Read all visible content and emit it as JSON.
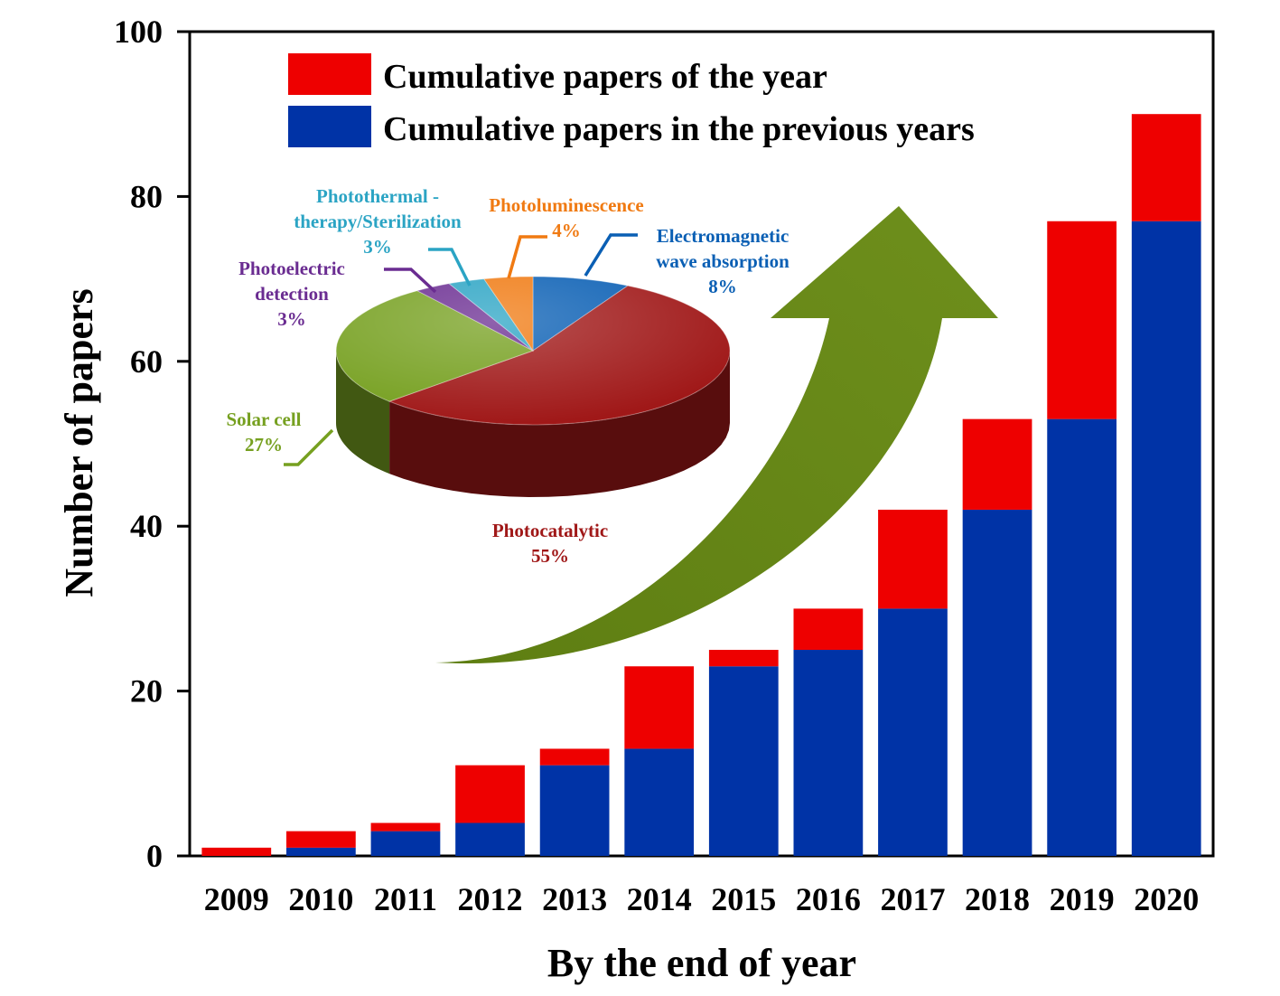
{
  "chart_data": [
    {
      "type": "bar",
      "stacked": true,
      "xlabel": "By the end of year",
      "ylabel": "Number of papers",
      "ylim": [
        0,
        100
      ],
      "yticks": [
        0,
        20,
        40,
        60,
        80,
        100
      ],
      "categories": [
        "2009",
        "2010",
        "2011",
        "2012",
        "2013",
        "2014",
        "2015",
        "2016",
        "2017",
        "2018",
        "2019",
        "2020"
      ],
      "series": [
        {
          "name": "Cumulative papers in the previous years",
          "color": "#0033A6",
          "values": [
            0,
            1,
            3,
            4,
            11,
            13,
            23,
            25,
            30,
            42,
            53,
            77
          ]
        },
        {
          "name": "Cumulative papers of the year",
          "color": "#EE0000",
          "values": [
            1,
            2,
            1,
            7,
            2,
            10,
            2,
            5,
            12,
            11,
            24,
            13
          ]
        }
      ],
      "legend": [
        "Cumulative papers of the year",
        "Cumulative papers in the previous years"
      ],
      "legend_position": "top-left"
    },
    {
      "type": "pie",
      "slices": [
        {
          "lines": [
            "Electromagnetic",
            "wave absorption"
          ],
          "percent_label": "8%",
          "value": 8,
          "color": "#0A5FB4"
        },
        {
          "lines": [
            "Photocatalytic"
          ],
          "percent_label": "55%",
          "value": 55,
          "color": "#A01818"
        },
        {
          "lines": [
            "Solar cell"
          ],
          "percent_label": "27%",
          "value": 27,
          "color": "#76A020"
        },
        {
          "lines": [
            "Photoelectric",
            "detection"
          ],
          "percent_label": "3%",
          "value": 3,
          "color": "#6A2C91"
        },
        {
          "lines": [
            "Photothermal -",
            "therapy/Sterilization"
          ],
          "percent_label": "3%",
          "value": 3,
          "color": "#2BA4C4"
        },
        {
          "lines": [
            "Photoluminescence"
          ],
          "percent_label": "4%",
          "value": 4,
          "color": "#F07A12"
        }
      ]
    }
  ]
}
